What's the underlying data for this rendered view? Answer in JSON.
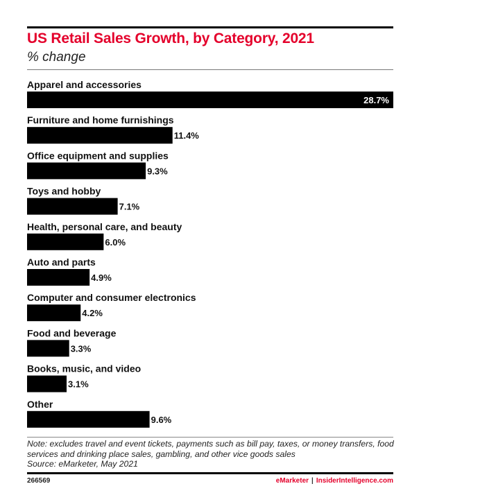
{
  "chart_data": {
    "type": "bar",
    "orientation": "horizontal",
    "title": "US Retail Sales Growth, by Category, 2021",
    "subtitle": "% change",
    "xlabel": "",
    "ylabel": "",
    "xlim": [
      0,
      28.7
    ],
    "grid": false,
    "legend": "none",
    "value_suffix": "%",
    "bar_color": "#000000",
    "title_color": "#e4002b",
    "categories": [
      "Apparel and accessories",
      "Furniture and home furnishings",
      "Office equipment and supplies",
      "Toys and hobby",
      "Health, personal care, and beauty",
      "Auto and parts",
      "Computer and consumer electronics",
      "Food and beverage",
      "Books, music, and video",
      "Other"
    ],
    "values": [
      28.7,
      11.4,
      9.3,
      7.1,
      6.0,
      4.9,
      4.2,
      3.3,
      3.1,
      9.6
    ],
    "data_labels": [
      "28.7%",
      "11.4%",
      "9.3%",
      "7.1%",
      "6.0%",
      "4.9%",
      "4.2%",
      "3.3%",
      "3.1%",
      "9.6%"
    ]
  },
  "footer": {
    "note": "Note: excludes travel and event tickets, payments such as bill pay, taxes, or money transfers, food services and drinking place sales, gambling, and other vice goods sales",
    "source": "Source: eMarketer, May 2021",
    "chart_id": "266569",
    "brand_primary": "eMarketer",
    "brand_separator": "|",
    "brand_secondary": "InsiderIntelligence.com"
  }
}
